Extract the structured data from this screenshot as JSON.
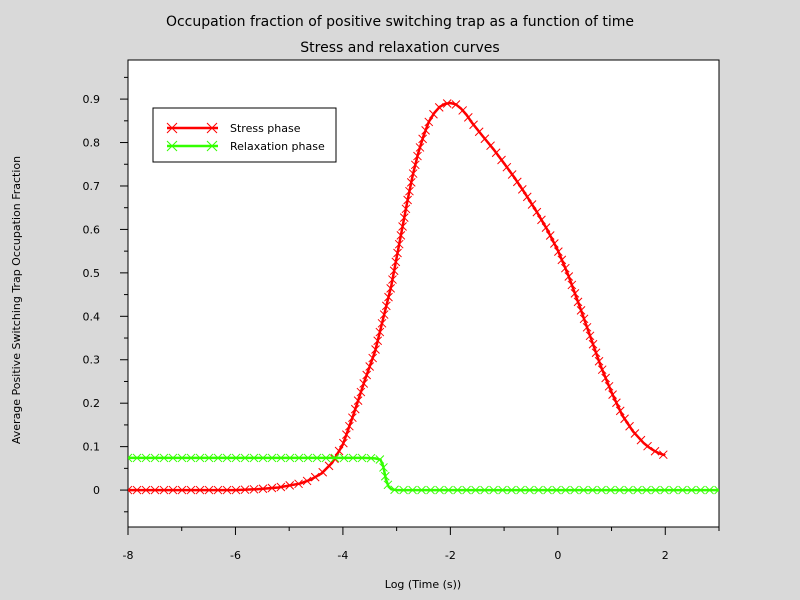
{
  "chart_data": {
    "type": "line",
    "title": "Occupation fraction of positive switching trap as a function of time",
    "subtitle": "Stress and relaxation curves",
    "xlabel": "Log (Time (s))",
    "ylabel": "Average Positive Switching Trap Occupation Fraction",
    "xlim": [
      -8,
      3
    ],
    "ylim": [
      -0.085,
      0.99
    ],
    "x_ticks": [
      -8,
      -6,
      -4,
      -2,
      0,
      2
    ],
    "y_ticks": [
      0,
      0.1,
      0.2,
      0.3,
      0.4,
      0.5,
      0.6,
      0.7,
      0.8,
      0.9
    ],
    "y_tick_labels": [
      "0",
      "0.1",
      "0.2",
      "0.3",
      "0.4",
      "0.5",
      "0.6",
      "0.7",
      "0.8",
      "0.9"
    ],
    "grid": false,
    "legend_position": "top-left",
    "series": [
      {
        "name": "Stress phase",
        "color": "#ff0000",
        "marker": "x",
        "x": [
          -8,
          -7.6,
          -7.2,
          -6.8,
          -6.4,
          -6.0,
          -5.6,
          -5.2,
          -4.8,
          -4.6,
          -4.4,
          -4.2,
          -4.0,
          -3.8,
          -3.6,
          -3.4,
          -3.3,
          -3.2,
          -3.1,
          -3.0,
          -2.9,
          -2.8,
          -2.7,
          -2.6,
          -2.5,
          -2.4,
          -2.3,
          -2.2,
          -2.1,
          -2.0,
          -1.9,
          -1.8,
          -1.7,
          -1.6,
          -1.4,
          -1.2,
          -1.0,
          -0.8,
          -0.6,
          -0.4,
          -0.2,
          0.0,
          0.2,
          0.4,
          0.6,
          0.8,
          1.0,
          1.2,
          1.4,
          1.6,
          1.7,
          1.8,
          1.9,
          2.0
        ],
        "y": [
          0,
          0,
          0,
          0,
          0,
          0,
          0.002,
          0.006,
          0.015,
          0.024,
          0.038,
          0.063,
          0.105,
          0.175,
          0.25,
          0.32,
          0.37,
          0.42,
          0.47,
          0.535,
          0.6,
          0.665,
          0.725,
          0.775,
          0.815,
          0.848,
          0.868,
          0.882,
          0.889,
          0.891,
          0.888,
          0.878,
          0.864,
          0.846,
          0.815,
          0.785,
          0.752,
          0.718,
          0.681,
          0.642,
          0.6,
          0.552,
          0.493,
          0.425,
          0.355,
          0.285,
          0.225,
          0.172,
          0.135,
          0.108,
          0.098,
          0.09,
          0.084,
          0.08
        ]
      },
      {
        "name": "Relaxation phase",
        "color": "#33ff00",
        "marker": "x",
        "x": [
          -8,
          -7.5,
          -7.0,
          -6.5,
          -6.0,
          -5.5,
          -5.0,
          -4.5,
          -4.0,
          -3.6,
          -3.4,
          -3.3,
          -3.25,
          -3.2,
          -3.15,
          -3.1,
          -3.0,
          -2.8,
          -2.5,
          -2.0,
          -1.5,
          -1.0,
          -0.5,
          0.0,
          0.5,
          1.0,
          1.5,
          2.0,
          2.5,
          3.0
        ],
        "y": [
          0.074,
          0.074,
          0.074,
          0.074,
          0.074,
          0.074,
          0.074,
          0.074,
          0.074,
          0.074,
          0.073,
          0.07,
          0.055,
          0.025,
          0.008,
          0.002,
          0,
          0,
          0,
          0,
          0,
          0,
          0,
          0,
          0,
          0,
          0,
          0,
          0,
          0
        ]
      }
    ]
  }
}
